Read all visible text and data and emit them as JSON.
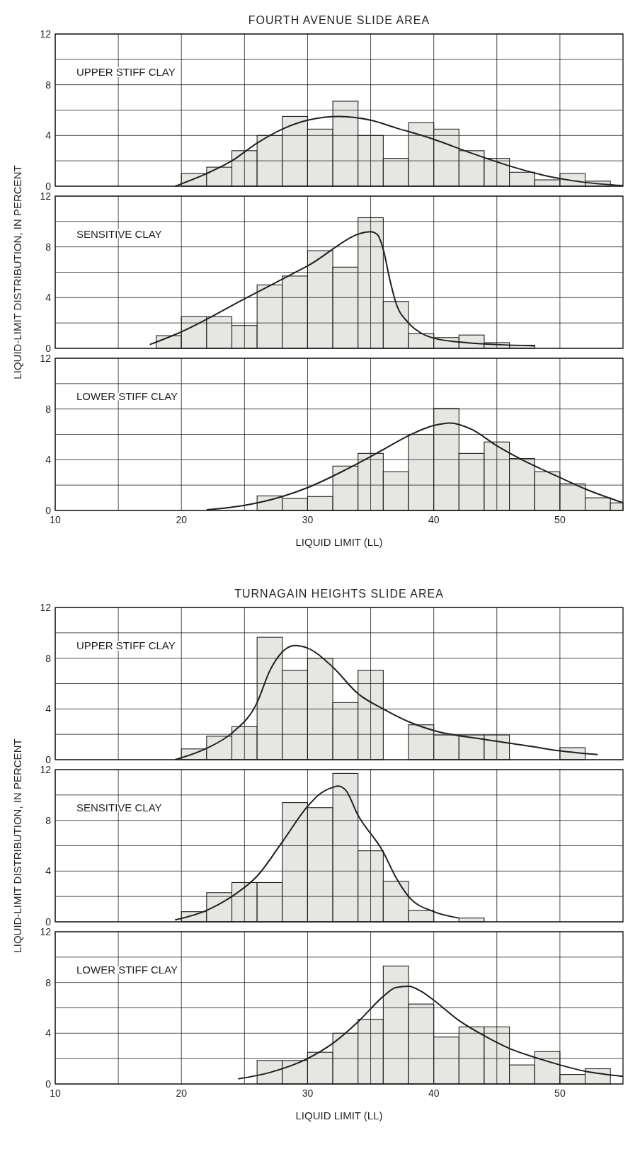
{
  "chart_data": [
    {
      "type": "histogram",
      "title": "FOURTH AVENUE SLIDE AREA",
      "subtitle": "UPPER STIFF CLAY",
      "color": "#e6e6e3",
      "grid": true,
      "tick_labels": "y",
      "xlim": [
        10,
        55
      ],
      "xticks": [
        10,
        {
          "value": 15,
          "label": null
        },
        20,
        {
          "value": 25,
          "label": null
        },
        30,
        {
          "value": 35,
          "label": null
        },
        40,
        {
          "value": 45,
          "label": null
        },
        50
      ],
      "ylim": [
        0,
        12
      ],
      "yticks": [
        0,
        {
          "value": 2,
          "label": null
        },
        4,
        {
          "value": 6,
          "label": null
        },
        8,
        {
          "value": 10,
          "label": null
        },
        12
      ],
      "bins": [
        20,
        22,
        24,
        26,
        28,
        30,
        32,
        34,
        36,
        38,
        40,
        42,
        44,
        46,
        48,
        50,
        52,
        54
      ],
      "values": [
        1.0,
        1.5,
        2.8,
        4.0,
        5.5,
        4.5,
        6.7,
        4.0,
        2.2,
        5.0,
        4.5,
        2.8,
        2.2,
        1.1,
        0.5,
        1.0,
        0.4
      ],
      "series": [
        {
          "type": "line",
          "color": "#231f20",
          "x": [
            19.5,
            22,
            24,
            26,
            28,
            30,
            32.5,
            35,
            37,
            40,
            43,
            46,
            49,
            52,
            55
          ],
          "values": [
            0,
            1.0,
            2.0,
            3.4,
            4.5,
            5.2,
            5.5,
            5.2,
            4.6,
            3.7,
            2.6,
            1.6,
            0.8,
            0.3,
            0.05
          ]
        }
      ]
    },
    {
      "type": "histogram",
      "subtitle": "SENSITIVE CLAY",
      "ylabel": "LIQUID-LIMIT DISTRIBUTION, IN PERCENT",
      "color": "#e6e6e3",
      "grid": true,
      "tick_labels": "y",
      "xlim": [
        10,
        55
      ],
      "xticks": [
        10,
        {
          "value": 15,
          "label": null
        },
        20,
        {
          "value": 25,
          "label": null
        },
        30,
        {
          "value": 35,
          "label": null
        },
        40,
        {
          "value": 45,
          "label": null
        },
        50
      ],
      "ylim": [
        0,
        12
      ],
      "yticks": [
        0,
        {
          "value": 2,
          "label": null
        },
        4,
        {
          "value": 6,
          "label": null
        },
        8,
        {
          "value": 10,
          "label": null
        },
        12
      ],
      "bins": [
        18,
        20,
        22,
        24,
        26,
        28,
        30,
        32,
        34,
        36,
        38,
        40,
        42,
        44,
        46,
        48
      ],
      "values": [
        1.0,
        2.5,
        2.5,
        1.8,
        5.0,
        5.7,
        7.7,
        6.4,
        10.3,
        3.7,
        1.15,
        0.85,
        1.05,
        0.45,
        0.25
      ],
      "series": [
        {
          "type": "line",
          "color": "#231f20",
          "x": [
            17.5,
            20,
            25,
            30,
            35,
            35.5,
            36,
            36.5,
            37,
            38,
            39,
            40,
            42,
            45,
            48
          ],
          "values": [
            0.3,
            1.3,
            3.9,
            6.5,
            9.2,
            9.0,
            7.8,
            5.5,
            3.6,
            2.0,
            1.2,
            0.8,
            0.5,
            0.3,
            0.2
          ]
        }
      ]
    },
    {
      "type": "histogram",
      "subtitle": "LOWER STIFF CLAY",
      "xlabel": "LIQUID LIMIT (LL)",
      "color": "#e6e6e3",
      "grid": true,
      "xlim": [
        10,
        55
      ],
      "xticks": [
        10,
        {
          "value": 15,
          "label": null
        },
        20,
        {
          "value": 25,
          "label": null
        },
        30,
        {
          "value": 35,
          "label": null
        },
        40,
        {
          "value": 45,
          "label": null
        },
        50
      ],
      "ylim": [
        0,
        12
      ],
      "yticks": [
        0,
        {
          "value": 2,
          "label": null
        },
        4,
        {
          "value": 6,
          "label": null
        },
        8,
        {
          "value": 10,
          "label": null
        },
        12
      ],
      "bins": [
        26,
        28,
        30,
        32,
        34,
        36,
        38,
        40,
        42,
        44,
        46,
        48,
        50,
        52,
        54,
        55
      ],
      "values": [
        1.15,
        0.95,
        1.1,
        3.5,
        4.5,
        3.05,
        6.0,
        8.05,
        4.5,
        5.4,
        4.1,
        3.05,
        2.1,
        1.0,
        0.6
      ],
      "series": [
        {
          "type": "line",
          "color": "#231f20",
          "x": [
            22,
            25,
            28,
            30,
            33,
            36,
            38,
            40,
            41.3,
            43,
            45,
            47,
            50,
            52,
            55
          ],
          "values": [
            0.05,
            0.4,
            1.1,
            1.8,
            3.2,
            4.8,
            5.9,
            6.7,
            6.9,
            6.4,
            5.1,
            4.0,
            2.6,
            1.7,
            0.6
          ]
        }
      ]
    },
    {
      "type": "histogram",
      "title": "TURNAGAIN HEIGHTS SLIDE AREA",
      "subtitle": "UPPER STIFF CLAY",
      "color": "#e6e6e3",
      "grid": true,
      "tick_labels": "y",
      "xlim": [
        10,
        55
      ],
      "xticks": [
        10,
        {
          "value": 15,
          "label": null
        },
        20,
        {
          "value": 25,
          "label": null
        },
        30,
        {
          "value": 35,
          "label": null
        },
        40,
        {
          "value": 45,
          "label": null
        },
        50
      ],
      "ylim": [
        0,
        12
      ],
      "yticks": [
        0,
        {
          "value": 2,
          "label": null
        },
        4,
        {
          "value": 6,
          "label": null
        },
        8,
        {
          "value": 10,
          "label": null
        },
        12
      ],
      "bins": [
        20,
        22,
        24,
        26,
        28,
        30,
        32,
        34,
        36,
        38,
        40,
        42,
        44,
        46,
        48,
        50,
        52
      ],
      "values": [
        0.85,
        1.85,
        2.6,
        9.65,
        7.05,
        8.0,
        4.5,
        7.05,
        0,
        2.75,
        1.95,
        1.95,
        1.95,
        0,
        0,
        0.95
      ],
      "series": [
        {
          "type": "line",
          "color": "#231f20",
          "x": [
            19.5,
            22,
            24,
            26,
            27,
            28,
            29,
            30,
            32,
            34,
            36,
            38,
            40,
            44,
            48,
            50,
            53
          ],
          "values": [
            0,
            0.9,
            2.1,
            4.5,
            7.0,
            8.5,
            9.0,
            8.8,
            7.3,
            5.2,
            4.0,
            3.0,
            2.3,
            1.6,
            1.0,
            0.7,
            0.4
          ]
        }
      ]
    },
    {
      "type": "histogram",
      "subtitle": "SENSITIVE CLAY",
      "ylabel": "LIQUID-LIMIT DISTRIBUTION, IN PERCENT",
      "color": "#e6e6e3",
      "grid": true,
      "tick_labels": "y",
      "xlim": [
        10,
        55
      ],
      "xticks": [
        10,
        {
          "value": 15,
          "label": null
        },
        20,
        {
          "value": 25,
          "label": null
        },
        30,
        {
          "value": 35,
          "label": null
        },
        40,
        {
          "value": 45,
          "label": null
        },
        50
      ],
      "ylim": [
        0,
        12
      ],
      "yticks": [
        0,
        {
          "value": 2,
          "label": null
        },
        4,
        {
          "value": 6,
          "label": null
        },
        8,
        {
          "value": 10,
          "label": null
        },
        12
      ],
      "bins": [
        20,
        22,
        24,
        26,
        28,
        30,
        32,
        34,
        36,
        38,
        40,
        42,
        44
      ],
      "values": [
        0.8,
        2.3,
        3.1,
        3.1,
        9.4,
        9.0,
        11.7,
        5.6,
        3.2,
        0.9,
        0,
        0.3
      ],
      "series": [
        {
          "type": "line",
          "color": "#231f20",
          "x": [
            19.5,
            22,
            24,
            26,
            28,
            30,
            31,
            32,
            32.4,
            33,
            34,
            36,
            37,
            38,
            40,
            42
          ],
          "values": [
            0.15,
            0.9,
            2.0,
            3.6,
            6.3,
            9.1,
            10.1,
            10.6,
            10.7,
            10.4,
            8.4,
            5.5,
            3.5,
            2.0,
            0.8,
            0.3
          ]
        }
      ]
    },
    {
      "type": "histogram",
      "subtitle": "LOWER STIFF CLAY",
      "xlabel": "LIQUID LIMIT (LL)",
      "color": "#e6e6e3",
      "grid": true,
      "xlim": [
        10,
        55
      ],
      "xticks": [
        10,
        {
          "value": 15,
          "label": null
        },
        20,
        {
          "value": 25,
          "label": null
        },
        30,
        {
          "value": 35,
          "label": null
        },
        40,
        {
          "value": 45,
          "label": null
        },
        50
      ],
      "ylim": [
        0,
        12
      ],
      "yticks": [
        0,
        {
          "value": 2,
          "label": null
        },
        4,
        {
          "value": 6,
          "label": null
        },
        8,
        {
          "value": 10,
          "label": null
        },
        12
      ],
      "bins": [
        26,
        28,
        30,
        32,
        34,
        36,
        38,
        40,
        42,
        44,
        46,
        48,
        50,
        52,
        54
      ],
      "values": [
        1.85,
        1.85,
        2.5,
        4.0,
        5.1,
        9.3,
        6.3,
        3.7,
        4.5,
        4.5,
        1.5,
        2.55,
        0.75,
        1.2
      ],
      "series": [
        {
          "type": "line",
          "color": "#231f20",
          "x": [
            24.5,
            27,
            30,
            32,
            34,
            36,
            37,
            38,
            39,
            40,
            42,
            44,
            46,
            48,
            50,
            52,
            55
          ],
          "values": [
            0.4,
            0.9,
            2.0,
            3.2,
            4.9,
            6.9,
            7.6,
            7.7,
            7.3,
            6.6,
            5.0,
            3.8,
            2.8,
            2.1,
            1.5,
            1.0,
            0.6
          ]
        }
      ]
    }
  ]
}
